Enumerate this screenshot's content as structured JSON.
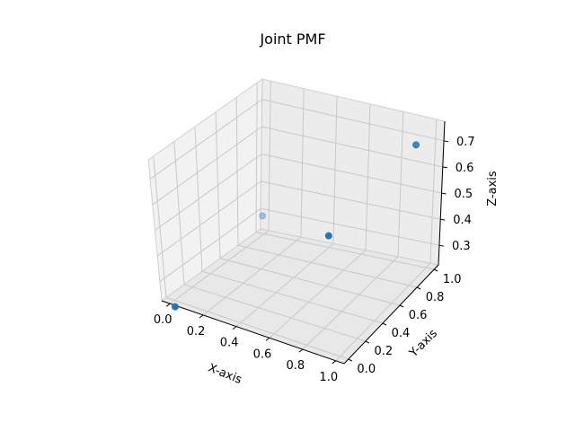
{
  "chart_data": {
    "type": "scatter",
    "title": "Joint PMF",
    "xlabel": "X-axis",
    "ylabel": "Y-axis",
    "zlabel": "Z-axis",
    "xlim": [
      -0.05,
      1.05
    ],
    "ylim": [
      -0.05,
      1.05
    ],
    "zlim": [
      0.225,
      0.775
    ],
    "xticks": [
      "0.0",
      "0.2",
      "0.4",
      "0.6",
      "0.8",
      "1.0"
    ],
    "yticks": [
      "0.0",
      "0.2",
      "0.4",
      "0.6",
      "0.8",
      "1.0"
    ],
    "zticks": [
      "0.3",
      "0.4",
      "0.5",
      "0.6",
      "0.7"
    ],
    "grid": true,
    "marker_color": "#1f77b4",
    "points": [
      {
        "x": 0,
        "y": 0,
        "z": 0.2
      },
      {
        "x": 0,
        "y": 1,
        "z": 0.3
      },
      {
        "x": 1,
        "y": 0,
        "z": 0.7
      },
      {
        "x": 1,
        "y": 1,
        "z": 0.8
      }
    ]
  }
}
